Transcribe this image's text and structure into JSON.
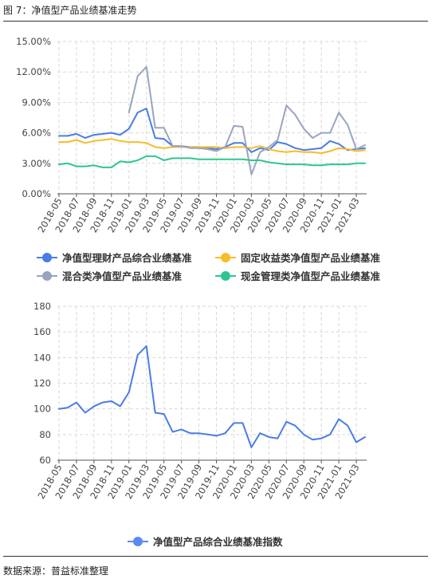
{
  "figure_title": "图 7：净值型产品业绩基准走势",
  "source": "数据来源：普益标准整理",
  "colors": {
    "blue": "#4a7ce8",
    "yellow": "#f6bd27",
    "gray": "#98a5c0",
    "green": "#2ec68f",
    "grid": "#d9d9d9"
  },
  "x_labels": [
    "2018-05",
    "2018-07",
    "2018-09",
    "2018-11",
    "2019-01",
    "2019-03",
    "2019-05",
    "2019-07",
    "2019-09",
    "2019-11",
    "2020-01",
    "2020-03",
    "2020-05",
    "2020-07",
    "2020-09",
    "2020-11",
    "2021-01",
    "2021-03"
  ],
  "chart_data": [
    {
      "type": "line",
      "title": "",
      "x": [
        "2018-05",
        "2018-06",
        "2018-07",
        "2018-08",
        "2018-09",
        "2018-10",
        "2018-11",
        "2018-12",
        "2019-01",
        "2019-02",
        "2019-03",
        "2019-04",
        "2019-05",
        "2019-06",
        "2019-07",
        "2019-08",
        "2019-09",
        "2019-10",
        "2019-11",
        "2019-12",
        "2020-01",
        "2020-02",
        "2020-03",
        "2020-04",
        "2020-05",
        "2020-06",
        "2020-07",
        "2020-08",
        "2020-09",
        "2020-10",
        "2020-11",
        "2020-12",
        "2021-01",
        "2021-02",
        "2021-03",
        "2021-04"
      ],
      "ylim": [
        0,
        15
      ],
      "yticks": [
        "0.00%",
        "3.00%",
        "6.00%",
        "9.00%",
        "12.00%",
        "15.00%"
      ],
      "grid": true,
      "legend_position": "bottom",
      "series": [
        {
          "name": "净值型理财产品综合业绩基准",
          "color": "#4a7ce8",
          "values": [
            5.7,
            5.7,
            5.9,
            5.5,
            5.8,
            5.9,
            6.0,
            5.8,
            6.4,
            8.0,
            8.4,
            5.5,
            5.4,
            4.7,
            4.7,
            4.6,
            4.6,
            4.5,
            4.4,
            4.6,
            5.0,
            5.0,
            4.1,
            4.5,
            4.3,
            5.1,
            4.9,
            4.5,
            4.3,
            4.4,
            4.5,
            5.2,
            4.9,
            4.3,
            4.4,
            4.5
          ]
        },
        {
          "name": "固定收益类净值型产品业绩基准",
          "color": "#f6bd27",
          "values": [
            5.1,
            5.1,
            5.3,
            5.0,
            5.2,
            5.3,
            5.4,
            5.2,
            5.1,
            5.1,
            5.0,
            4.6,
            4.5,
            4.6,
            4.6,
            4.6,
            4.6,
            4.6,
            4.6,
            4.5,
            4.6,
            4.6,
            4.5,
            4.7,
            4.4,
            4.2,
            4.1,
            4.2,
            4.1,
            4.1,
            4.0,
            4.2,
            4.5,
            4.4,
            4.2,
            4.3
          ]
        },
        {
          "name": "混合类净值型产品业绩基准",
          "color": "#98a5c0",
          "values": [
            null,
            null,
            null,
            null,
            null,
            null,
            null,
            null,
            8.0,
            11.6,
            12.5,
            6.5,
            6.5,
            4.7,
            4.7,
            4.5,
            4.5,
            4.4,
            4.2,
            4.6,
            6.7,
            6.6,
            1.9,
            4.1,
            4.6,
            5.3,
            8.7,
            7.8,
            6.4,
            5.5,
            6.0,
            6.0,
            8.0,
            6.8,
            4.4,
            4.8
          ]
        },
        {
          "name": "现金管理类净值型产品业绩基准",
          "color": "#2ec68f",
          "values": [
            2.9,
            3.0,
            2.7,
            2.7,
            2.8,
            2.6,
            2.6,
            3.2,
            3.1,
            3.3,
            3.7,
            3.7,
            3.3,
            3.5,
            3.5,
            3.5,
            3.4,
            3.4,
            3.4,
            3.4,
            3.4,
            3.4,
            3.3,
            3.3,
            3.1,
            3.0,
            2.9,
            2.9,
            2.9,
            2.8,
            2.8,
            2.9,
            2.9,
            2.9,
            3.0,
            3.0
          ]
        }
      ]
    },
    {
      "type": "line",
      "title": "",
      "x": [
        "2018-05",
        "2018-06",
        "2018-07",
        "2018-08",
        "2018-09",
        "2018-10",
        "2018-11",
        "2018-12",
        "2019-01",
        "2019-02",
        "2019-03",
        "2019-04",
        "2019-05",
        "2019-06",
        "2019-07",
        "2019-08",
        "2019-09",
        "2019-10",
        "2019-11",
        "2019-12",
        "2020-01",
        "2020-02",
        "2020-03",
        "2020-04",
        "2020-05",
        "2020-06",
        "2020-07",
        "2020-08",
        "2020-09",
        "2020-10",
        "2020-11",
        "2020-12",
        "2021-01",
        "2021-02",
        "2021-03",
        "2021-04"
      ],
      "ylim": [
        60,
        180
      ],
      "yticks": [
        "60",
        "80",
        "100",
        "120",
        "140",
        "160",
        "180"
      ],
      "grid": true,
      "legend_position": "bottom",
      "series": [
        {
          "name": "净值型产品综合业绩基准指数",
          "color": "#4a7ce8",
          "values": [
            100,
            101,
            105,
            97,
            102,
            105,
            106,
            102,
            113,
            142,
            149,
            97,
            96,
            82,
            84,
            81,
            81,
            80,
            79,
            81,
            89,
            89,
            70,
            81,
            78,
            77,
            90,
            87,
            80,
            76,
            77,
            80,
            92,
            87,
            74,
            78
          ]
        }
      ]
    }
  ]
}
